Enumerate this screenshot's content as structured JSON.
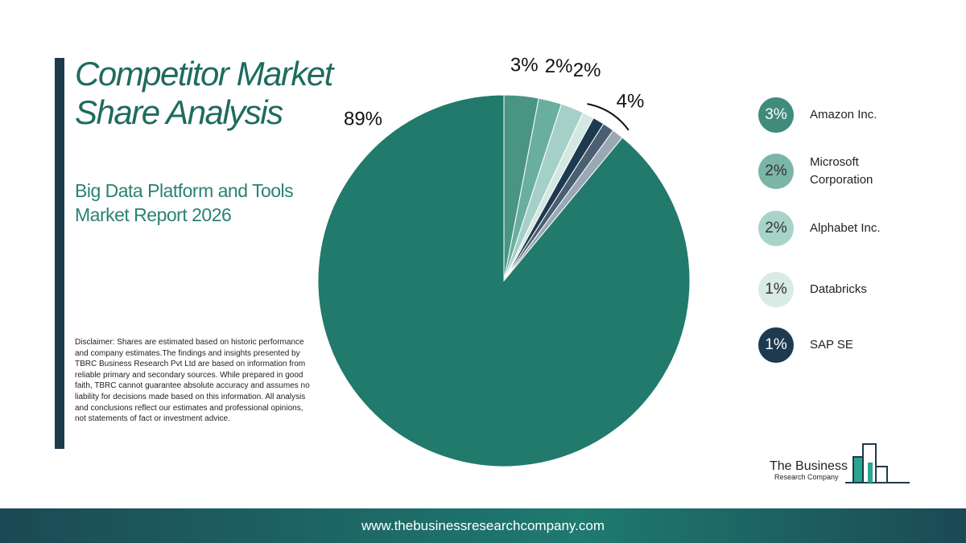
{
  "chart_data": {
    "type": "pie",
    "title": "Competitor Market Share Analysis",
    "subtitle": "Big Data Platform and Tools Market Report 2026",
    "categories": [
      "Amazon Inc.",
      "Microsoft Corporation",
      "Alphabet Inc.",
      "Databricks",
      "SAP SE",
      null,
      null,
      null
    ],
    "values": [
      3,
      2,
      2,
      1,
      1,
      1,
      1,
      89
    ],
    "value_labels": [
      "3%",
      "2%",
      "2%",
      "1%",
      "1%",
      null,
      null,
      "89%"
    ],
    "colors": [
      "#4a9484",
      "#6aaea0",
      "#a5d0c7",
      "#d3e8e3",
      "#1e3a50",
      "#4a5f72",
      "#9aa8b5",
      "#217a6c"
    ],
    "legend_colors": [
      "#3f8b7c",
      "#7ab5a8",
      "#a8d3c9",
      "#d9ebe6",
      "#1e3a50"
    ],
    "group_annotation": {
      "value": 4,
      "label": "4%"
    }
  },
  "disclaimer": "Disclaimer: Shares are estimated based on historic performance and company estimates.The findings and insights presented by TBRC Business Research Pvt Ltd are based on information from reliable primary and secondary sources. While prepared in good faith, TBRC cannot guarantee absolute accuracy and assumes no liability for decisions made based on this information. All analysis and conclusions reflect our estimates and professional opinions, not statements of fact or investment advice.",
  "logo": {
    "line1": "The Business",
    "line2": "Research Company"
  },
  "footer": "www.thebusinessresearchcompany.com"
}
